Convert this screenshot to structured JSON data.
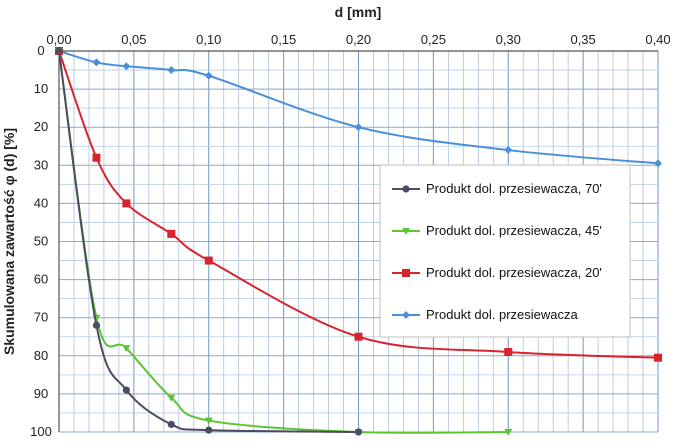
{
  "chart_data": {
    "type": "line",
    "orientation": "x-axis top, y-axis inverted (0 at top, 100 at bottom)",
    "xlabel": "d [mm]",
    "ylabel": "Skumulowana zawartość φ (d) [%]",
    "xlim": [
      0,
      0.4
    ],
    "ylim": [
      0,
      100
    ],
    "x_ticks": [
      "0,00",
      "0,05",
      "0,10",
      "0,15",
      "0,20",
      "0,25",
      "0,30",
      "0,35",
      "0,40"
    ],
    "y_ticks": [
      "0",
      "10",
      "20",
      "30",
      "40",
      "50",
      "60",
      "70",
      "80",
      "90",
      "100"
    ],
    "grid": true,
    "legend_position": "right, mid-height",
    "series": [
      {
        "name": "Produkt dol. przesiewacza",
        "color": "#4a90d9",
        "marker": "diamond",
        "x": [
          0.0,
          0.025,
          0.045,
          0.075,
          0.1,
          0.2,
          0.3,
          0.4
        ],
        "y": [
          0,
          3,
          4,
          5,
          6.5,
          20,
          26,
          29.5
        ]
      },
      {
        "name": "Produkt dol. przesiewacza, 20'",
        "color": "#d9232d",
        "marker": "square",
        "x": [
          0.0,
          0.025,
          0.045,
          0.075,
          0.1,
          0.2,
          0.3,
          0.4
        ],
        "y": [
          0,
          28,
          40,
          48,
          55,
          75,
          79,
          80.5
        ]
      },
      {
        "name": "Produkt dol. przesiewacza, 45'",
        "color": "#5ec434",
        "marker": "triangle",
        "x": [
          0.0,
          0.025,
          0.045,
          0.075,
          0.1,
          0.2,
          0.3
        ],
        "y": [
          0,
          70,
          78,
          91,
          97,
          100,
          100
        ]
      },
      {
        "name": "Produkt dol. przesiewacza, 70'",
        "color": "#4b4b63",
        "marker": "circle",
        "x": [
          0.0,
          0.025,
          0.045,
          0.075,
          0.1,
          0.2
        ],
        "y": [
          0,
          72,
          89,
          98,
          99.5,
          100
        ]
      }
    ]
  }
}
